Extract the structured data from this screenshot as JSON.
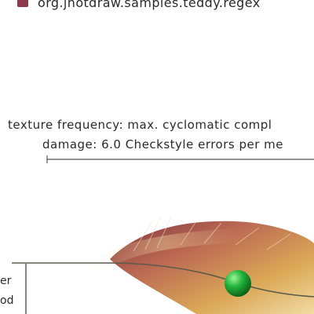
{
  "legend": {
    "label": "org.jhotdraw.samples.teddy.regex",
    "swatch_color": "#8e3a4c"
  },
  "info": {
    "texture_line": "texture frequency: max. cyclomatic compl",
    "damage_line": "damage: 6.0 Checkstyle errors per me"
  },
  "side_labels": {
    "line_1": "er",
    "line_2": "od"
  },
  "marker": {
    "color": "#22b33a"
  },
  "feather": {
    "colors": [
      "#7a2a33",
      "#b8624a",
      "#d9a44e",
      "#f1d9a0"
    ]
  }
}
